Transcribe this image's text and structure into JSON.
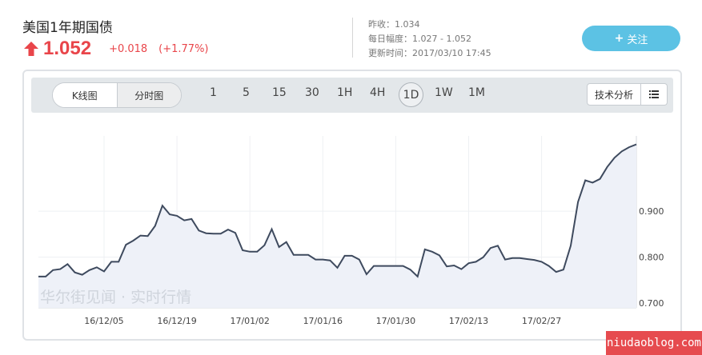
{
  "header": {
    "title": "美国1年期国债",
    "price": "1.052",
    "change": "+0.018",
    "change_pct": "(+1.77%)",
    "prev_close": "昨收：1.034",
    "day_range": "每日幅度：1.027 - 1.052",
    "updated": "更新时间：2017/03/10 17:45",
    "follow_label": "关注",
    "follow_plus": "+"
  },
  "toolbar": {
    "kline_label": "K线图",
    "timeshare_label": "分时图",
    "periods": [
      "1",
      "5",
      "15",
      "30",
      "1H",
      "4H",
      "1D",
      "1W",
      "1M"
    ],
    "active_period": "1D",
    "tech_label": "技术分析"
  },
  "watermark": "华尔街见闻 · 实时行情",
  "site_badge": "niudaoblog.com",
  "colors": {
    "up": "#e9454a",
    "accent": "#5cc2e4",
    "line": "#3e4a5e",
    "area": "#eef1f8"
  },
  "chart_data": {
    "type": "area",
    "title": "",
    "xlabel": "",
    "ylabel": "",
    "x_ticks": [
      "16/12/05",
      "16/12/19",
      "17/01/02",
      "17/01/16",
      "17/01/30",
      "17/02/13",
      "17/02/27"
    ],
    "y_ticks": [
      0.7,
      0.8,
      0.9
    ],
    "ylim": [
      0.69,
      1.06
    ],
    "grid": true,
    "series": [
      {
        "values": [
          0.758,
          0.758,
          0.772,
          0.774,
          0.785,
          0.767,
          0.762,
          0.772,
          0.778,
          0.769,
          0.79,
          0.79,
          0.827,
          0.836,
          0.847,
          0.846,
          0.868,
          0.912,
          0.893,
          0.89,
          0.88,
          0.883,
          0.858,
          0.852,
          0.851,
          0.851,
          0.86,
          0.853,
          0.815,
          0.812,
          0.812,
          0.826,
          0.861,
          0.822,
          0.833,
          0.805,
          0.805,
          0.805,
          0.795,
          0.795,
          0.793,
          0.777,
          0.803,
          0.803,
          0.795,
          0.763,
          0.781,
          0.781,
          0.781,
          0.781,
          0.781,
          0.773,
          0.758,
          0.817,
          0.812,
          0.804,
          0.78,
          0.782,
          0.774,
          0.787,
          0.79,
          0.8,
          0.82,
          0.825,
          0.795,
          0.798,
          0.798,
          0.796,
          0.794,
          0.79,
          0.781,
          0.768,
          0.773,
          0.825,
          0.92,
          0.967,
          0.962,
          0.97,
          0.996,
          1.016,
          1.03,
          1.039,
          1.045
        ]
      }
    ]
  }
}
